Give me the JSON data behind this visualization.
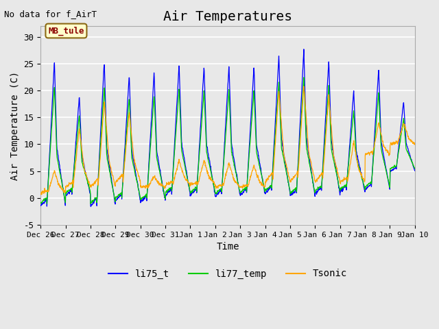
{
  "title": "Air Temperatures",
  "xlabel": "Time",
  "ylabel": "Air Temperature (C)",
  "subtitle": "No data for f_AirT",
  "station_label": "MB_tule",
  "ylim": [
    -5,
    32
  ],
  "yticks": [
    -5,
    0,
    5,
    10,
    15,
    20,
    25,
    30
  ],
  "num_days": 15,
  "noise_scale": 0.5,
  "line_colors": {
    "li75_t": "#0000ff",
    "li77_temp": "#00cc00",
    "Tsonic": "#ffa500"
  },
  "legend_labels": [
    "li75_t",
    "li77_temp",
    "Tsonic"
  ],
  "bg_color": "#e8e8e8",
  "plot_bg_color": "#e8e8e8",
  "grid_color": "#ffffff",
  "xtick_labels": [
    "Dec 26",
    "Dec 27",
    "Dec 28",
    "Dec 29",
    "Dec 30",
    "Dec 31",
    "Jan 1",
    "Jan 2",
    "Jan 3",
    "Jan 4",
    "Jan 5",
    "Jan 6",
    "Jan 7",
    "Jan 8",
    "Jan 9",
    "Jan 10"
  ],
  "daily_max_blue": [
    25.5,
    19,
    25.5,
    23,
    23.5,
    25,
    24.5,
    24.7,
    24.5,
    26.5,
    27.5,
    25.5,
    20,
    24,
    18,
    10
  ],
  "daily_min_blue": [
    -1.5,
    0.5,
    -1.5,
    -0.5,
    -0.8,
    0.5,
    0.5,
    0.3,
    0.5,
    0.8,
    0.3,
    0.8,
    1.2,
    1.5,
    5,
    5.5
  ],
  "daily_max_orange": [
    5,
    13,
    18,
    16,
    4,
    7,
    7,
    6.5,
    6,
    20,
    21,
    19,
    10.5,
    14,
    14,
    11
  ],
  "daily_min_orange": [
    1,
    2,
    2,
    3,
    2,
    2.5,
    2.5,
    2,
    2,
    3,
    3,
    3,
    3,
    8,
    10,
    10
  ],
  "title_fontsize": 14,
  "label_fontsize": 10,
  "tick_fontsize": 9
}
